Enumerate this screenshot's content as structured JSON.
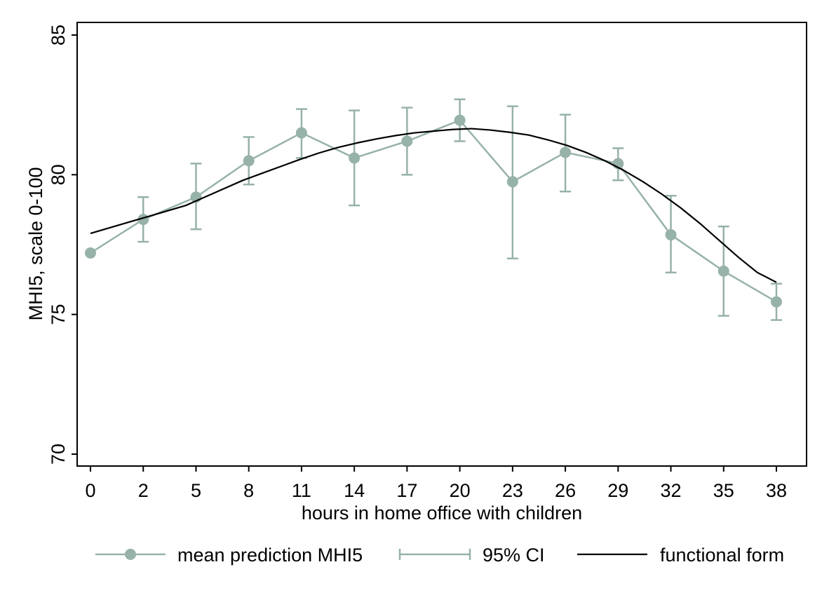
{
  "chart_data": {
    "type": "line",
    "title": "",
    "xlabel": "hours in home office with children",
    "ylabel": "MHI5, scale 0-100",
    "x_categories": [
      "0",
      "2",
      "5",
      "8",
      "11",
      "14",
      "17",
      "20",
      "23",
      "26",
      "29",
      "32",
      "35",
      "38"
    ],
    "ylim": [
      70,
      85
    ],
    "yticks": [
      "70",
      "75",
      "80",
      "85"
    ],
    "grid": false,
    "legend_position": "bottom",
    "series": [
      {
        "name": "mean prediction MHI5",
        "kind": "line-marker",
        "color": "#97b2a8",
        "values": [
          77.2,
          78.4,
          79.2,
          80.5,
          81.5,
          80.6,
          81.2,
          81.95,
          79.75,
          80.8,
          80.4,
          77.85,
          76.55,
          75.45
        ]
      },
      {
        "name": "95% CI",
        "kind": "errorbar",
        "color": "#97b2a8",
        "lower": [
          77.2,
          77.6,
          78.05,
          79.65,
          80.6,
          78.9,
          80.0,
          81.2,
          77.0,
          79.4,
          79.8,
          76.5,
          74.95,
          74.8
        ],
        "upper": [
          77.2,
          79.2,
          80.4,
          81.35,
          82.35,
          82.3,
          82.4,
          82.7,
          82.45,
          82.15,
          80.95,
          79.25,
          78.15,
          76.1
        ]
      },
      {
        "name": "functional form",
        "kind": "curve",
        "color": "#000000",
        "points": [
          [
            0,
            77.9
          ],
          [
            0.5,
            78.1
          ],
          [
            1,
            78.3
          ],
          [
            1.5,
            78.5
          ],
          [
            2,
            78.7
          ],
          [
            2.5,
            78.9
          ],
          [
            3,
            79.2
          ],
          [
            3.5,
            79.5
          ],
          [
            4,
            79.8
          ],
          [
            4.5,
            80.05
          ],
          [
            5,
            80.3
          ],
          [
            5.5,
            80.55
          ],
          [
            6,
            80.78
          ],
          [
            6.5,
            80.98
          ],
          [
            7,
            81.14
          ],
          [
            7.5,
            81.28
          ],
          [
            8,
            81.4
          ],
          [
            8.5,
            81.5
          ],
          [
            9,
            81.56
          ],
          [
            9.5,
            81.62
          ],
          [
            10,
            81.65
          ],
          [
            10.5,
            81.6
          ],
          [
            11,
            81.52
          ],
          [
            11.5,
            81.42
          ],
          [
            12,
            81.25
          ],
          [
            12.5,
            81.05
          ],
          [
            13,
            80.8
          ],
          [
            13.5,
            80.5
          ],
          [
            14,
            80.15
          ],
          [
            14.5,
            79.75
          ],
          [
            15,
            79.3
          ],
          [
            15.5,
            78.8
          ],
          [
            16,
            78.25
          ],
          [
            16.5,
            77.65
          ],
          [
            17,
            77.05
          ],
          [
            17.5,
            76.5
          ],
          [
            18,
            76.15
          ]
        ]
      }
    ]
  }
}
